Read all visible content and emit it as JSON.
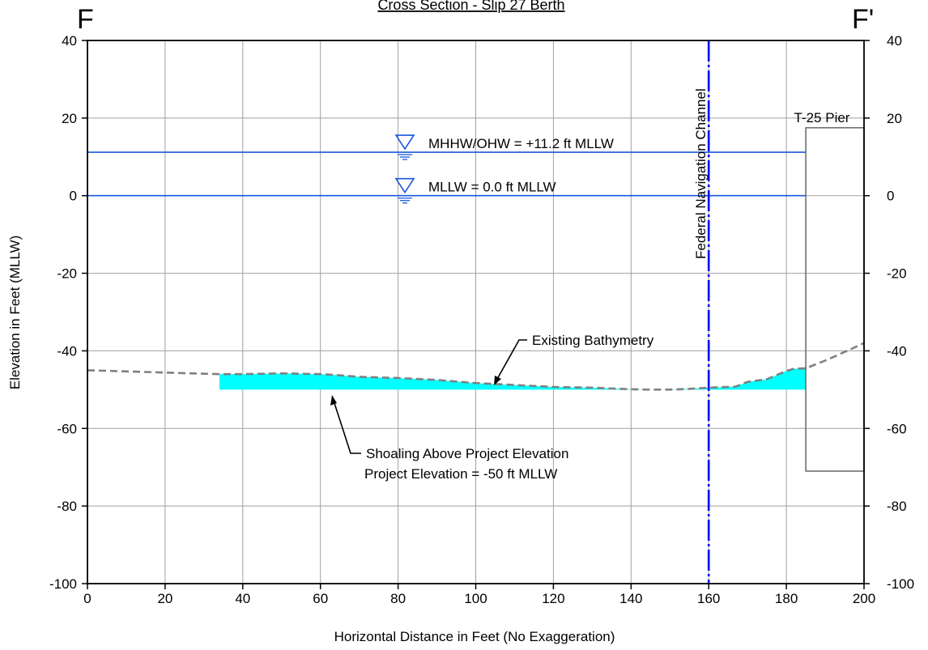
{
  "chart_data": {
    "type": "area",
    "title": "Cross Section - Slip 27 Berth",
    "section_start_label": "F",
    "section_end_label": "F'",
    "xlabel": "Horizontal Distance in Feet (No Exaggeration)",
    "ylabel": "Elevation in Feet (MLLW)",
    "xlim": [
      0,
      200
    ],
    "ylim": [
      -100,
      40
    ],
    "x_ticks": [
      "0",
      "20",
      "40",
      "60",
      "80",
      "100",
      "120",
      "140",
      "160",
      "180",
      "200"
    ],
    "y_ticks": [
      "40",
      "20",
      "0",
      "-20",
      "-40",
      "-60",
      "-80",
      "-100"
    ],
    "y_ticks_right": [
      "40",
      "20",
      "0",
      "-20",
      "-40",
      "-60",
      "-80",
      "-100"
    ],
    "grid": true,
    "colors": {
      "water_line": "#1a56e0",
      "channel_line": "#0000ff",
      "bathymetry": "#808080",
      "shoaling": "#00ffff",
      "pier": "#666666",
      "grid": "#a0a0a0"
    },
    "water_levels": [
      {
        "label": "MHHW/OHW = +11.2 ft MLLW",
        "y": 11.2,
        "x_start": 0,
        "x_end": 185
      },
      {
        "label": "MLLW = 0.0 ft MLLW",
        "y": 0.0,
        "x_start": 0,
        "x_end": 185
      }
    ],
    "navigation_channel": {
      "label": "Federal Navigation Channel",
      "x": 160
    },
    "pier": {
      "label": "T-25 Pier",
      "x_start": 185,
      "x_end": 200,
      "y_top": 17.5,
      "y_bottom": -71
    },
    "project_elevation": -50,
    "series": [
      {
        "name": "Existing Bathymetry",
        "x": [
          0,
          10,
          20,
          30,
          34,
          40,
          50,
          60,
          65,
          70,
          80,
          90,
          100,
          110,
          120,
          130,
          140,
          145,
          150,
          155,
          160,
          167,
          170,
          175,
          180,
          182,
          185,
          190,
          195,
          200
        ],
        "y": [
          -45,
          -45.3,
          -45.6,
          -45.9,
          -46,
          -46,
          -45.8,
          -46,
          -46.3,
          -46.7,
          -47,
          -47.5,
          -48.3,
          -48.8,
          -49.3,
          -49.5,
          -49.9,
          -50,
          -50,
          -49.8,
          -49.5,
          -49.2,
          -48,
          -47.3,
          -45.2,
          -44.6,
          -44.5,
          -42.5,
          -40.3,
          -38
        ]
      }
    ],
    "shoaling_area": {
      "x_start": 34,
      "x_end": 185,
      "bottom": -50
    },
    "annotations": {
      "bathymetry_label": "Existing Bathymetry",
      "shoaling_label_1": "Shoaling Above Project Elevation",
      "shoaling_label_2": "Project Elevation = -50 ft MLLW"
    }
  }
}
